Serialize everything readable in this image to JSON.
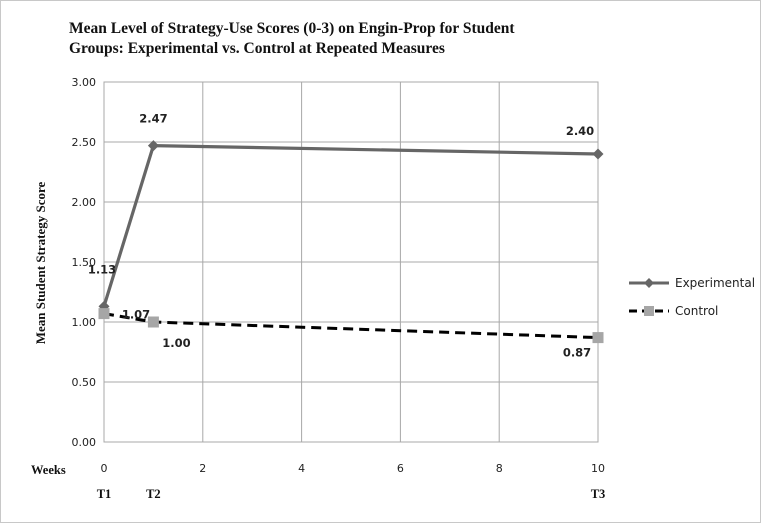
{
  "chart_data": {
    "type": "line",
    "title": "Mean Level of Strategy-Use Scores (0-3) on Engin-Prop for  Student Groups: Experimental vs. Control at Repeated Measures",
    "title_lines": [
      "Mean Level of Strategy-Use Scores (0-3) on Engin-Prop for  Student",
      "Groups: Experimental vs. Control at Repeated Measures"
    ],
    "xlabel": "Weeks",
    "ylabel": "Mean Student Strategy Score",
    "xlim": [
      0,
      10
    ],
    "ylim": [
      0,
      3
    ],
    "x_ticks": [
      0,
      2,
      4,
      6,
      8,
      10
    ],
    "y_ticks": [
      0,
      0.5,
      1,
      1.5,
      2,
      2.5,
      3
    ],
    "y_tick_labels": [
      "0.00",
      "0.50",
      "1.00",
      "1.50",
      "2.00",
      "2.50",
      "3.00"
    ],
    "grid": true,
    "legend_position": "right",
    "phase_labels": [
      {
        "x": 0,
        "label": "T1"
      },
      {
        "x": 1,
        "label": "T2"
      },
      {
        "x": 10,
        "label": "T3"
      }
    ],
    "series": [
      {
        "name": "Experimental",
        "x": [
          0,
          1,
          10
        ],
        "values": [
          1.13,
          2.47,
          2.4
        ],
        "labels": [
          "1.13",
          "2.47",
          "2.40"
        ],
        "color": "#666666",
        "line_style": "solid",
        "marker": "diamond"
      },
      {
        "name": "Control",
        "x": [
          0,
          1,
          10
        ],
        "values": [
          1.07,
          1.0,
          0.87
        ],
        "labels": [
          "1.07",
          "1.00",
          "0.87"
        ],
        "color": "#000000",
        "marker_color": "#a6a6a6",
        "line_style": "dashed",
        "marker": "square"
      }
    ]
  }
}
